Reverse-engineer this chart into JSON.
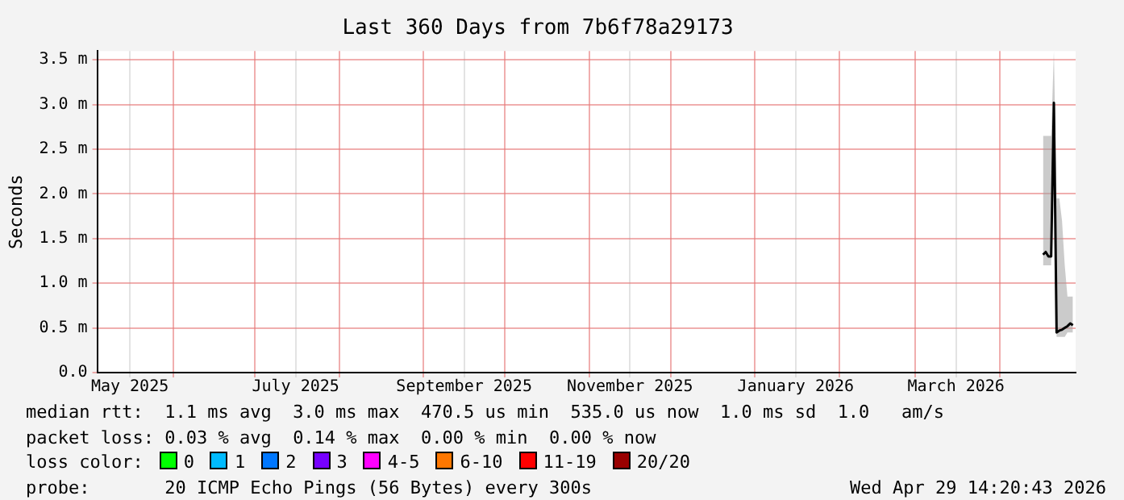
{
  "chart_data": {
    "type": "line",
    "title": "Last 360 Days from 7b6f78a29173",
    "ylabel": "Seconds",
    "x": [
      "2026-04-17",
      "2026-04-18",
      "2026-04-19",
      "2026-04-20",
      "2026-04-21",
      "2026-04-22",
      "2026-04-23",
      "2026-04-24",
      "2026-04-25",
      "2026-04-26",
      "2026-04-27",
      "2026-04-28"
    ],
    "series": [
      {
        "color": "#000000",
        "values": [
          1.32,
          1.35,
          1.3,
          1.3,
          3.02,
          0.45,
          0.47,
          0.48,
          0.5,
          0.52,
          0.55,
          0.53
        ],
        "lower": [
          1.2,
          1.2,
          1.2,
          1.2,
          2.9,
          0.4,
          0.4,
          0.4,
          0.4,
          0.45,
          0.45,
          0.45
        ],
        "upper": [
          2.65,
          2.65,
          2.65,
          2.65,
          3.6,
          1.95,
          1.95,
          1.7,
          1.2,
          0.85,
          0.85,
          0.85
        ]
      }
    ],
    "xlim": [
      "2025-05-04",
      "2026-04-29"
    ],
    "xticks": [
      {
        "value": "2025-05-16",
        "label": "May 2025"
      },
      {
        "value": "2025-06-01",
        "label": null
      },
      {
        "value": "2025-07-01",
        "label": null
      },
      {
        "value": "2025-07-16",
        "label": "July 2025"
      },
      {
        "value": "2025-08-01",
        "label": null
      },
      {
        "value": "2025-09-01",
        "label": null
      },
      {
        "value": "2025-09-16",
        "label": "September 2025"
      },
      {
        "value": "2025-10-01",
        "label": null
      },
      {
        "value": "2025-11-01",
        "label": null
      },
      {
        "value": "2025-11-16",
        "label": "November 2025"
      },
      {
        "value": "2025-12-01",
        "label": null
      },
      {
        "value": "2026-01-01",
        "label": null
      },
      {
        "value": "2026-01-16",
        "label": "January 2026"
      },
      {
        "value": "2026-02-01",
        "label": null
      },
      {
        "value": "2026-03-01",
        "label": null
      },
      {
        "value": "2026-03-16",
        "label": "March 2026"
      },
      {
        "value": "2026-04-01",
        "label": null
      }
    ],
    "ylim": [
      0,
      3.6
    ],
    "yticks": [
      {
        "value": 0,
        "label": "0.0"
      },
      {
        "value": 0.5,
        "label": "0.5 m"
      },
      {
        "value": 1,
        "label": "1.0 m"
      },
      {
        "value": 1.5,
        "label": "1.5 m"
      },
      {
        "value": 2,
        "label": "2.0 m"
      },
      {
        "value": 2.5,
        "label": "2.5 m"
      },
      {
        "value": 3,
        "label": "3.0 m"
      },
      {
        "value": 3.5,
        "label": "3.5 m"
      }
    ],
    "grid": true,
    "legend": false,
    "annotations": [
      "median rtt:  1.1 ms avg  3.0 ms max  470.5 us min  535.0 us now  1.0 ms sd  1.0   am/s",
      "packet loss: 0.03 % avg  0.14 % max  0.00 % min  0.00 % now",
      "loss color:",
      "0",
      "1",
      "2",
      "3",
      "4-5",
      "6-10",
      "11-19",
      "20/20",
      "probe:       20 ICMP Echo Pings (56 Bytes) every 300s",
      "Wed Apr 29 14:20:43 2026"
    ]
  }
}
